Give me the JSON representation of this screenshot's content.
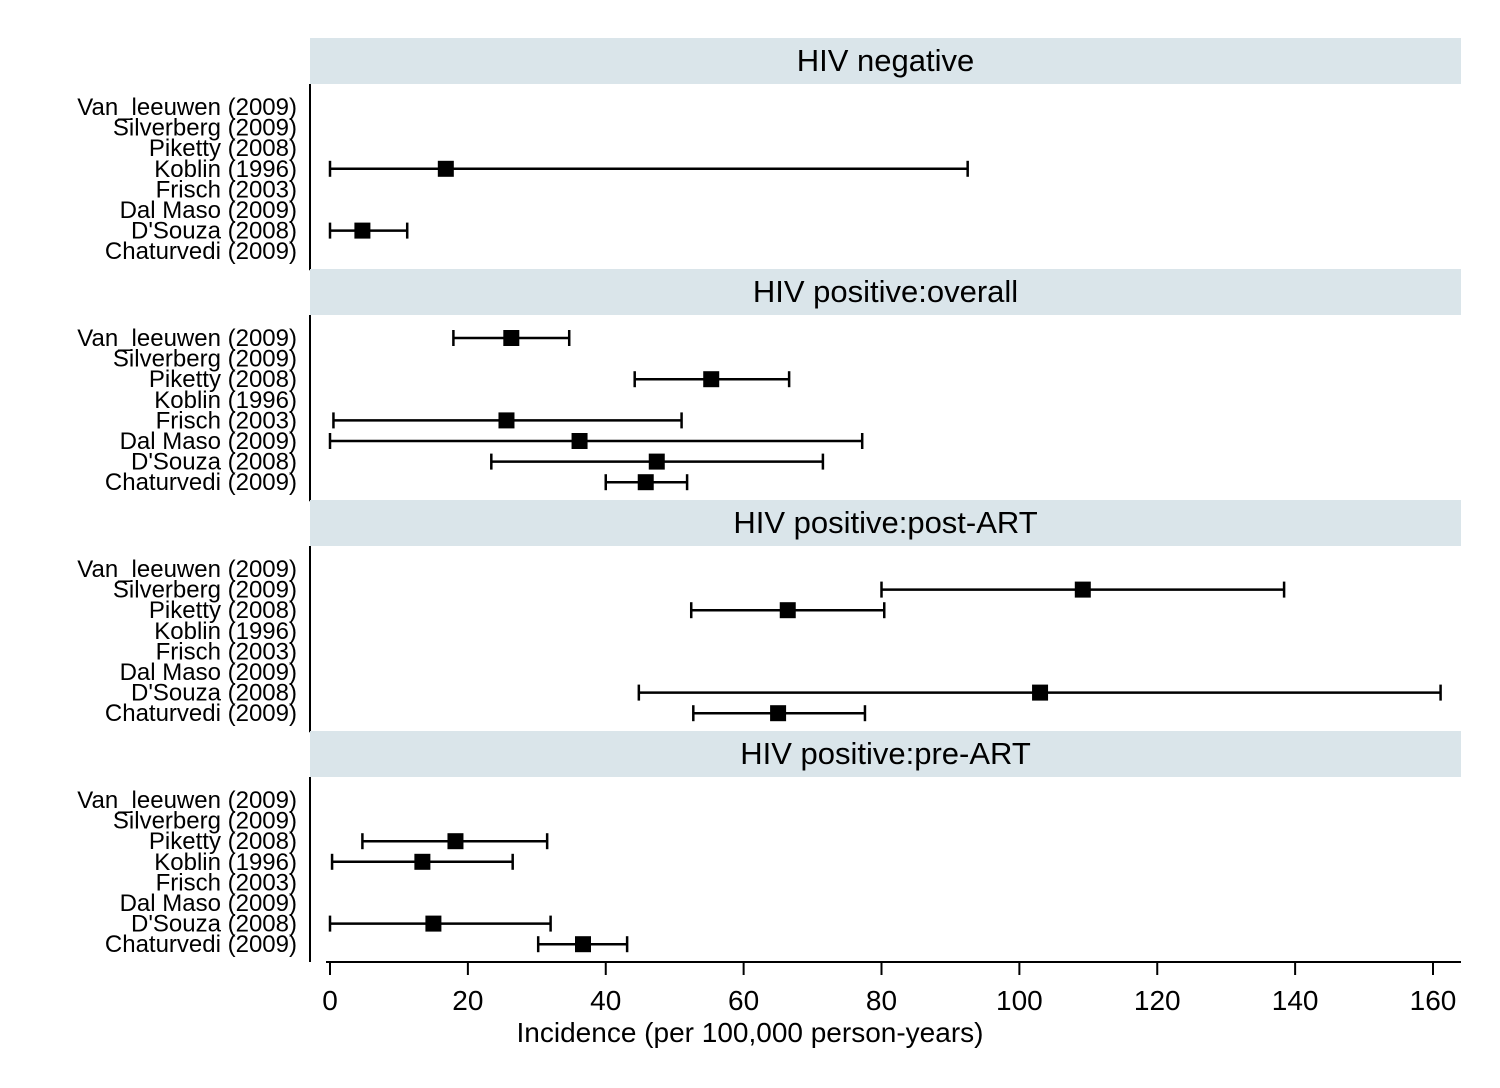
{
  "chart_data": {
    "type": "forest",
    "xlabel": "Incidence (per 100,000 person-years)",
    "xlim": [
      0,
      160
    ],
    "xticks": [
      0,
      20,
      40,
      60,
      80,
      100,
      120,
      140,
      160
    ],
    "studies": [
      "Van_leeuwen (2009)",
      "Silverberg (2009)",
      "Piketty (2008)",
      "Koblin (1996)",
      "Frisch (2003)",
      "Dal Maso (2009)",
      "D'Souza (2008)",
      "Chaturvedi (2009)"
    ],
    "colors": {
      "strip": "#dae5ea",
      "marker": "#000000"
    },
    "panels": [
      {
        "title": "HIV negative",
        "estimates": [
          {
            "study": "Koblin (1996)",
            "estimate": 16.8,
            "lower": 0.0,
            "upper": 92.5
          },
          {
            "study": "D'Souza (2008)",
            "estimate": 4.7,
            "lower": 0.0,
            "upper": 11.2
          }
        ]
      },
      {
        "title": "HIV positive:overall",
        "estimates": [
          {
            "study": "Van_leeuwen (2009)",
            "estimate": 26.3,
            "lower": 17.9,
            "upper": 34.7
          },
          {
            "study": "Piketty (2008)",
            "estimate": 55.3,
            "lower": 44.2,
            "upper": 66.6
          },
          {
            "study": "Frisch (2003)",
            "estimate": 25.6,
            "lower": 0.5,
            "upper": 51.0
          },
          {
            "study": "Dal Maso (2009)",
            "estimate": 36.2,
            "lower": 0.0,
            "upper": 77.2
          },
          {
            "study": "D'Souza (2008)",
            "estimate": 47.4,
            "lower": 23.4,
            "upper": 71.5
          },
          {
            "study": "Chaturvedi (2009)",
            "estimate": 45.8,
            "lower": 40.0,
            "upper": 51.8
          }
        ]
      },
      {
        "title": "HIV positive:post-ART",
        "estimates": [
          {
            "study": "Silverberg (2009)",
            "estimate": 109.2,
            "lower": 80.0,
            "upper": 138.4
          },
          {
            "study": "Piketty (2008)",
            "estimate": 66.4,
            "lower": 52.4,
            "upper": 80.4
          },
          {
            "study": "D'Souza (2008)",
            "estimate": 103.0,
            "lower": 44.8,
            "upper": 161.1
          },
          {
            "study": "Chaturvedi (2009)",
            "estimate": 65.0,
            "lower": 52.7,
            "upper": 77.6
          }
        ]
      },
      {
        "title": "HIV positive:pre-ART",
        "estimates": [
          {
            "study": "Piketty (2008)",
            "estimate": 18.2,
            "lower": 4.7,
            "upper": 31.5
          },
          {
            "study": "Koblin (1996)",
            "estimate": 13.4,
            "lower": 0.3,
            "upper": 26.5
          },
          {
            "study": "D'Souza (2008)",
            "estimate": 15.0,
            "lower": 0.0,
            "upper": 32.0
          },
          {
            "study": "Chaturvedi (2009)",
            "estimate": 36.7,
            "lower": 30.2,
            "upper": 43.1
          }
        ]
      }
    ]
  }
}
